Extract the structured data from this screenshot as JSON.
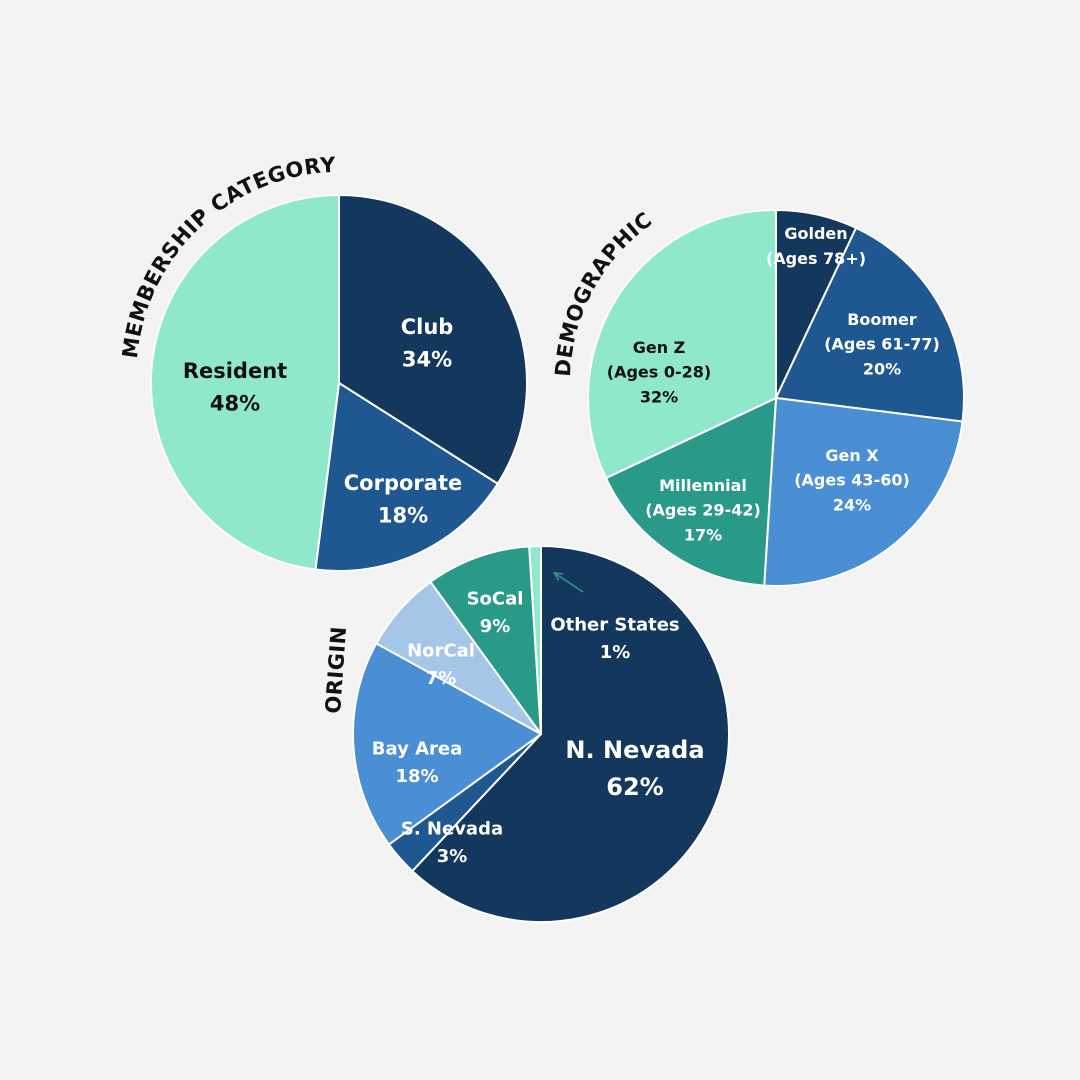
{
  "colors": {
    "background": "#f3f3f3",
    "navy": "#14375e",
    "dark_blue": "#1f5890",
    "mid_blue": "#4a8fd4",
    "light_blue": "#a6c6e8",
    "mint": "#90e8cc",
    "teal": "#2a9a88"
  },
  "chart_data": [
    {
      "type": "pie",
      "title": "MEMBERSHIP CATEGORY",
      "slices": [
        {
          "label": "Club",
          "value": "34%",
          "percent": 34,
          "color": "#14375e",
          "text_color": "#ffffff"
        },
        {
          "label": "Corporate",
          "value": "18%",
          "percent": 18,
          "color": "#1f5890",
          "text_color": "#ffffff"
        },
        {
          "label": "Resident",
          "value": "48%",
          "percent": 48,
          "color": "#90e8cc",
          "text_color": "#111111"
        }
      ]
    },
    {
      "type": "pie",
      "title": "DEMOGRAPHIC",
      "slices": [
        {
          "label": "Golden",
          "sub": "(Ages 78+)",
          "value": "",
          "percent": 7,
          "color": "#14375e",
          "text_color": "#ffffff"
        },
        {
          "label": "Boomer",
          "sub": "(Ages 61-77)",
          "value": "20%",
          "percent": 20,
          "color": "#1f5890",
          "text_color": "#ffffff"
        },
        {
          "label": "Gen X",
          "sub": "(Ages 43-60)",
          "value": "24%",
          "percent": 24,
          "color": "#4a8fd4",
          "text_color": "#ffffff"
        },
        {
          "label": "Millennial",
          "sub": "(Ages 29-42)",
          "value": "17%",
          "percent": 17,
          "color": "#2a9a88",
          "text_color": "#ffffff"
        },
        {
          "label": "Gen Z",
          "sub": "(Ages 0-28)",
          "value": "32%",
          "percent": 32,
          "color": "#90e8cc",
          "text_color": "#111111"
        }
      ]
    },
    {
      "type": "pie",
      "title": "ORIGIN",
      "slices": [
        {
          "label": "N. Nevada",
          "value": "62%",
          "percent": 62,
          "color": "#14375e",
          "text_color": "#ffffff"
        },
        {
          "label": "S. Nevada",
          "value": "3%",
          "percent": 3,
          "color": "#1f5890",
          "text_color": "#ffffff"
        },
        {
          "label": "Bay Area",
          "value": "18%",
          "percent": 18,
          "color": "#4a8fd4",
          "text_color": "#ffffff"
        },
        {
          "label": "NorCal",
          "value": "7%",
          "percent": 7,
          "color": "#a6c6e8",
          "text_color": "#ffffff"
        },
        {
          "label": "SoCal",
          "value": "9%",
          "percent": 9,
          "color": "#2a9a88",
          "text_color": "#ffffff"
        },
        {
          "label": "Other States",
          "value": "1%",
          "percent": 1,
          "color": "#90e8cc",
          "text_color": "#ffffff"
        }
      ]
    }
  ]
}
